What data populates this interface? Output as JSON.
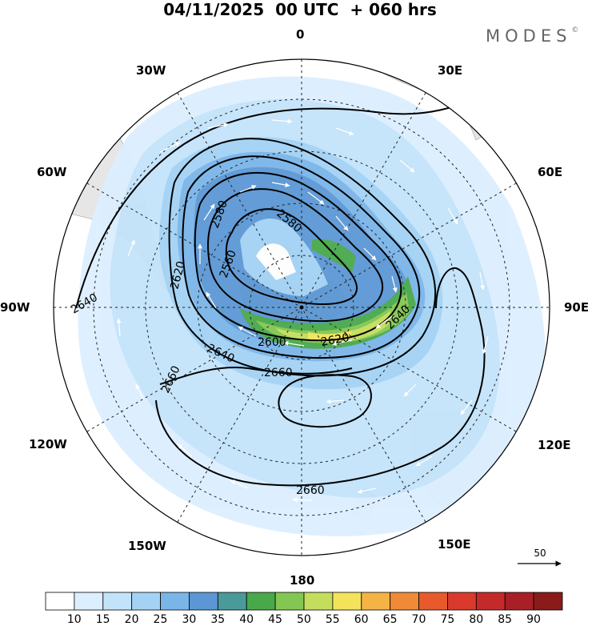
{
  "header": {
    "title": "04/11/2025  00 UTC  + 060 hrs",
    "brand": "MODES",
    "brand_mark": "©"
  },
  "map": {
    "projection": "south-polar-stereographic",
    "longitude_labels": {
      "top": "0",
      "n30e": "30E",
      "n60e": "60E",
      "e": "90E",
      "s120e": "120E",
      "s150e": "150E",
      "bottom": "180",
      "s150w": "150W",
      "s120w": "120W",
      "w": "90W",
      "n60w": "60W",
      "n30w": "30W"
    },
    "contour_labels": [
      "2640",
      "2620",
      "2580",
      "2560",
      "2580",
      "2600",
      "2620",
      "2640",
      "2640",
      "2660",
      "2660",
      "2660"
    ],
    "reference_vector_label": "50",
    "colors": {
      "land": "#e6e6e6",
      "shade_10_15": "#dcefff",
      "shade_15_20": "#c3e3fa",
      "shade_20_25": "#a3d2f4",
      "shade_25_30": "#7ab5e8",
      "shade_30_35": "#5b97d4",
      "shade_35_40": "#4a9a9a",
      "shade_40_45": "#48a84a",
      "shade_45_50": "#83c752",
      "shade_50_55": "#c5dd5c",
      "shade_55_60": "#f4e35a"
    }
  },
  "colorbar": {
    "ticks": [
      "10",
      "15",
      "20",
      "25",
      "30",
      "35",
      "40",
      "45",
      "50",
      "55",
      "60",
      "65",
      "70",
      "75",
      "80",
      "85",
      "90"
    ],
    "colors": [
      "#ffffff",
      "#dcefff",
      "#c3e3fa",
      "#a3d2f4",
      "#7ab5e8",
      "#5b97d4",
      "#4a9a9a",
      "#48a84a",
      "#83c752",
      "#c5dd5c",
      "#f4e35a",
      "#f4b445",
      "#f08a38",
      "#e8592c",
      "#d93a2c",
      "#c42a2a",
      "#a91f27",
      "#8b1a1a"
    ]
  }
}
